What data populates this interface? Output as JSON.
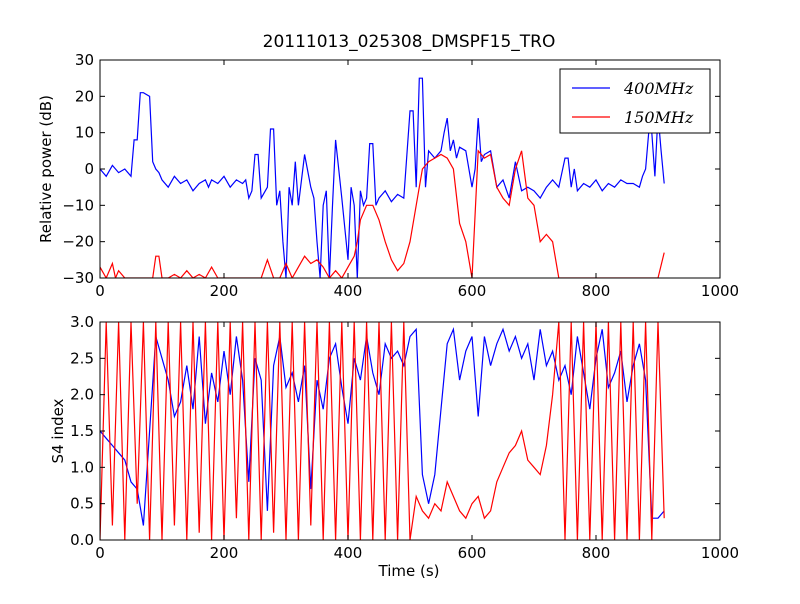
{
  "figure": {
    "title": "20111013_025308_DMSPF15_TRO"
  },
  "chart_data": [
    {
      "type": "line",
      "title": "20111013_025308_DMSPF15_TRO",
      "xlabel": "",
      "ylabel": "Relative power (dB)",
      "xlim": [
        0,
        1000
      ],
      "ylim": [
        -30,
        30
      ],
      "xticks": [
        "0",
        "200",
        "400",
        "600",
        "800",
        "1000"
      ],
      "yticks": [
        "−30",
        "−20",
        "−10",
        "0",
        "10",
        "20",
        "30"
      ],
      "grid": false,
      "legend": {
        "placement": "top-right",
        "entries": [
          "400MHz",
          "150MHz"
        ]
      },
      "series": [
        {
          "name": "400MHz",
          "color": "#0000ff",
          "x": [
            0,
            10,
            20,
            30,
            40,
            50,
            55,
            60,
            65,
            70,
            80,
            85,
            90,
            95,
            100,
            110,
            120,
            130,
            140,
            150,
            160,
            170,
            175,
            180,
            190,
            200,
            210,
            220,
            230,
            235,
            240,
            245,
            250,
            255,
            260,
            270,
            275,
            280,
            285,
            290,
            295,
            300,
            305,
            310,
            315,
            320,
            330,
            340,
            345,
            350,
            355,
            360,
            365,
            370,
            375,
            380,
            390,
            400,
            405,
            410,
            415,
            420,
            425,
            430,
            435,
            440,
            445,
            450,
            460,
            470,
            480,
            490,
            500,
            505,
            510,
            515,
            520,
            525,
            530,
            540,
            550,
            555,
            560,
            565,
            570,
            575,
            580,
            590,
            600,
            605,
            610,
            615,
            620,
            630,
            640,
            650,
            660,
            670,
            680,
            690,
            700,
            710,
            720,
            730,
            740,
            750,
            755,
            760,
            765,
            770,
            780,
            790,
            800,
            810,
            820,
            830,
            840,
            850,
            860,
            870,
            875,
            880,
            885,
            890,
            895,
            900,
            905,
            910
          ],
          "y": [
            0,
            -2,
            1,
            -1,
            0,
            -2,
            8,
            8,
            21,
            21,
            20,
            2,
            0,
            -1,
            -3,
            -5,
            -2,
            -4,
            -3,
            -6,
            -4,
            -3,
            -5,
            -3,
            -4,
            -2,
            -5,
            -3,
            -4,
            -3,
            -8,
            -6,
            4,
            4,
            -8,
            -5,
            11,
            11,
            -10,
            -6,
            -20,
            -30,
            -5,
            -10,
            2,
            -10,
            4,
            -5,
            -8,
            -20,
            -30,
            -10,
            -6,
            -30,
            -10,
            8,
            -8,
            -25,
            -5,
            -10,
            -30,
            -6,
            -10,
            -8,
            7,
            7,
            -10,
            -8,
            -6,
            -9,
            -7,
            -8,
            16,
            16,
            -5,
            25,
            25,
            -5,
            5,
            3,
            5,
            10,
            14,
            5,
            8,
            3,
            6,
            5,
            -5,
            0,
            14,
            2,
            4,
            5,
            -5,
            -3,
            -8,
            2,
            -6,
            -5,
            -6,
            -8,
            -5,
            -3,
            -5,
            3,
            3,
            -5,
            0,
            -6,
            -4,
            -5,
            -3,
            -6,
            -4,
            -5,
            -3,
            -4,
            -4,
            -5,
            -2,
            0,
            10,
            10,
            -2,
            15,
            5,
            -4
          ]
        },
        {
          "name": "150MHz",
          "color": "#ff0000",
          "x": [
            0,
            10,
            20,
            25,
            30,
            40,
            50,
            60,
            70,
            80,
            85,
            90,
            95,
            100,
            110,
            120,
            130,
            140,
            150,
            160,
            170,
            180,
            190,
            200,
            210,
            220,
            230,
            240,
            250,
            260,
            270,
            280,
            290,
            300,
            310,
            320,
            330,
            340,
            350,
            360,
            370,
            380,
            390,
            400,
            410,
            415,
            420,
            430,
            440,
            450,
            460,
            470,
            480,
            490,
            500,
            510,
            520,
            530,
            540,
            550,
            560,
            570,
            580,
            590,
            600,
            610,
            620,
            630,
            640,
            650,
            660,
            670,
            680,
            690,
            700,
            710,
            720,
            730,
            740,
            750,
            760,
            770,
            780,
            790,
            800,
            810,
            820,
            830,
            840,
            850,
            860,
            870,
            880,
            890,
            900,
            910
          ],
          "y": [
            -27,
            -30,
            -26,
            -30,
            -28,
            -30,
            -30,
            -30,
            -30,
            -30,
            -30,
            -24,
            -24,
            -30,
            -30,
            -29,
            -30,
            -28,
            -30,
            -29,
            -30,
            -27,
            -30,
            -30,
            -30,
            -30,
            -30,
            -30,
            -30,
            -30,
            -25,
            -30,
            -30,
            -26,
            -30,
            -27,
            -24,
            -26,
            -25,
            -27,
            -30,
            -28,
            -30,
            -27,
            -24,
            -20,
            -14,
            -10,
            -10,
            -14,
            -20,
            -25,
            -28,
            -26,
            -20,
            -10,
            0,
            2,
            3,
            4,
            3,
            0,
            -15,
            -20,
            -30,
            5,
            3,
            4,
            -5,
            -8,
            -10,
            0,
            5,
            -8,
            -10,
            -20,
            -18,
            -20,
            -30,
            -30,
            -30,
            -30,
            -30,
            -30,
            -30,
            -30,
            -30,
            -30,
            -30,
            -30,
            -30,
            -30,
            -30,
            -30,
            -30,
            -23
          ]
        }
      ]
    },
    {
      "type": "line",
      "title": "",
      "xlabel": "Time (s)",
      "ylabel": "S4 index",
      "xlim": [
        0,
        1000
      ],
      "ylim": [
        0,
        3
      ],
      "xticks": [
        "0",
        "200",
        "400",
        "600",
        "800",
        "1000"
      ],
      "yticks": [
        "0.0",
        "0.5",
        "1.0",
        "1.5",
        "2.0",
        "2.5",
        "3.0"
      ],
      "grid": false,
      "series": [
        {
          "name": "400MHz",
          "color": "#0000ff",
          "x": [
            0,
            10,
            20,
            30,
            40,
            50,
            60,
            70,
            80,
            90,
            100,
            110,
            120,
            130,
            140,
            150,
            160,
            170,
            180,
            190,
            200,
            210,
            220,
            230,
            240,
            250,
            260,
            270,
            280,
            290,
            300,
            310,
            320,
            330,
            340,
            350,
            360,
            370,
            380,
            390,
            400,
            410,
            420,
            430,
            440,
            450,
            460,
            470,
            480,
            490,
            500,
            510,
            520,
            530,
            540,
            550,
            560,
            570,
            580,
            590,
            600,
            610,
            620,
            630,
            640,
            650,
            660,
            670,
            680,
            690,
            700,
            710,
            720,
            730,
            740,
            750,
            760,
            770,
            780,
            790,
            800,
            810,
            820,
            830,
            840,
            850,
            860,
            870,
            880,
            890,
            900,
            910
          ],
          "y": [
            1.5,
            1.4,
            1.3,
            1.2,
            1.1,
            0.8,
            0.7,
            0.2,
            1.5,
            2.8,
            2.5,
            2.2,
            1.7,
            1.9,
            2.4,
            1.8,
            2.8,
            1.6,
            2.3,
            1.9,
            2.6,
            2.0,
            2.8,
            2.2,
            0.8,
            2.5,
            2.2,
            0.4,
            2.4,
            2.8,
            2.1,
            2.3,
            1.9,
            2.4,
            0.7,
            2.2,
            1.8,
            2.5,
            2.7,
            2.1,
            1.6,
            2.5,
            2.2,
            2.8,
            2.3,
            2.0,
            2.7,
            2.5,
            2.6,
            2.4,
            2.8,
            2.9,
            0.9,
            0.5,
            0.9,
            1.8,
            2.7,
            2.9,
            2.2,
            2.6,
            2.8,
            1.7,
            2.8,
            2.4,
            2.7,
            2.9,
            2.6,
            2.8,
            2.5,
            2.7,
            2.2,
            2.9,
            2.4,
            2.6,
            2.2,
            2.4,
            2.0,
            2.8,
            2.3,
            1.8,
            2.5,
            2.9,
            2.1,
            2.3,
            2.6,
            1.9,
            2.4,
            2.7,
            2.2,
            0.3,
            0.3,
            0.4
          ]
        },
        {
          "name": "150MHz",
          "color": "#ff0000",
          "x": [
            0,
            10,
            20,
            30,
            40,
            50,
            60,
            70,
            80,
            90,
            100,
            110,
            120,
            130,
            140,
            150,
            160,
            170,
            180,
            190,
            200,
            210,
            220,
            230,
            240,
            250,
            260,
            270,
            280,
            290,
            300,
            310,
            320,
            330,
            340,
            350,
            360,
            370,
            380,
            390,
            400,
            410,
            420,
            430,
            440,
            450,
            460,
            470,
            480,
            490,
            500,
            510,
            520,
            530,
            540,
            550,
            560,
            570,
            580,
            590,
            600,
            610,
            620,
            630,
            640,
            650,
            660,
            670,
            680,
            690,
            700,
            710,
            720,
            730,
            740,
            750,
            760,
            770,
            780,
            790,
            800,
            810,
            820,
            830,
            840,
            850,
            860,
            870,
            880,
            890,
            900,
            910
          ],
          "y": [
            0.0,
            3.0,
            0.2,
            3.0,
            0.0,
            3.0,
            0.5,
            3.0,
            0.0,
            3.0,
            0.0,
            3.0,
            0.2,
            3.0,
            0.0,
            3.0,
            0.1,
            3.0,
            0.0,
            3.0,
            0.0,
            3.0,
            0.3,
            3.0,
            0.0,
            3.0,
            0.0,
            3.0,
            0.1,
            3.0,
            0.0,
            3.0,
            0.0,
            3.0,
            0.2,
            3.0,
            0.0,
            3.0,
            0.0,
            3.0,
            0.0,
            3.0,
            0.0,
            3.0,
            0.0,
            3.0,
            0.0,
            3.0,
            0.0,
            3.0,
            0.0,
            0.6,
            0.4,
            0.3,
            0.5,
            0.4,
            0.8,
            0.6,
            0.4,
            0.3,
            0.5,
            0.6,
            0.3,
            0.4,
            0.8,
            1.0,
            1.2,
            1.3,
            1.5,
            1.1,
            1.0,
            0.9,
            1.3,
            2.0,
            3.0,
            0.0,
            3.0,
            0.0,
            3.0,
            0.0,
            3.0,
            0.0,
            3.0,
            0.0,
            3.0,
            0.0,
            3.0,
            0.0,
            3.0,
            0.0,
            3.0,
            0.3
          ]
        }
      ]
    }
  ]
}
